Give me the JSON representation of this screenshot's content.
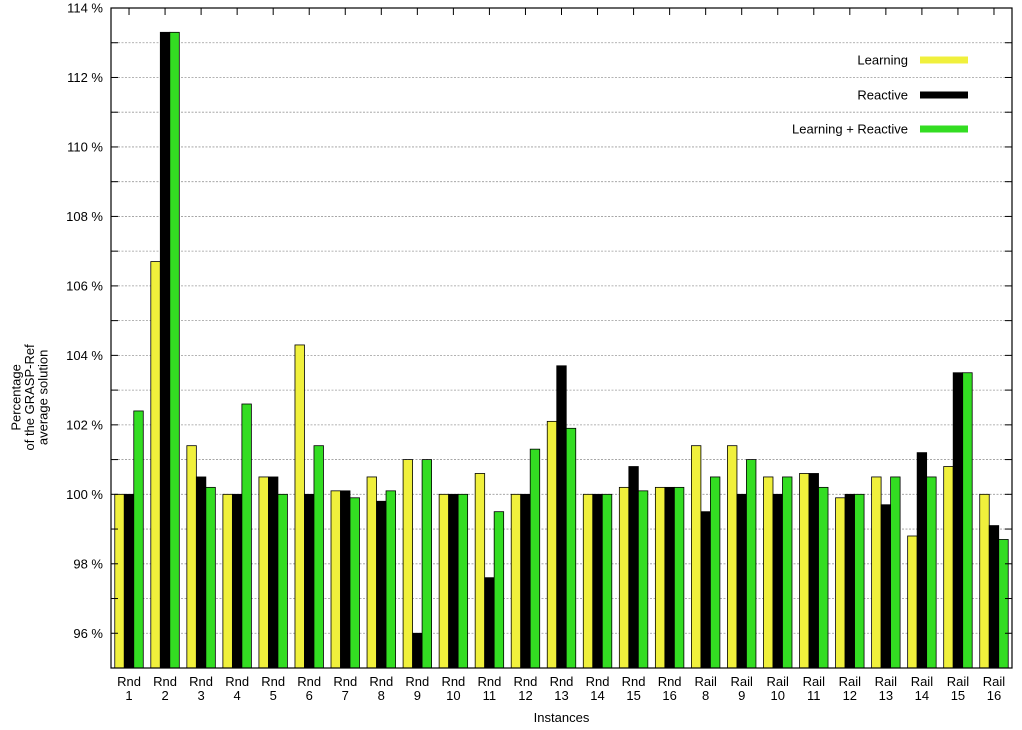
{
  "chart_data": {
    "type": "bar",
    "title": "",
    "xlabel": "Instances",
    "ylabel": [
      "Percentage",
      "of the GRASP-Ref",
      "average solution"
    ],
    "ylim": [
      95,
      114
    ],
    "yticks": [
      96,
      98,
      100,
      102,
      104,
      106,
      108,
      110,
      112,
      114
    ],
    "ytick_suffix": " %",
    "grid": true,
    "legend_position": "top-right",
    "categories": [
      [
        "Rnd",
        "1"
      ],
      [
        "Rnd",
        "2"
      ],
      [
        "Rnd",
        "3"
      ],
      [
        "Rnd",
        "4"
      ],
      [
        "Rnd",
        "5"
      ],
      [
        "Rnd",
        "6"
      ],
      [
        "Rnd",
        "7"
      ],
      [
        "Rnd",
        "8"
      ],
      [
        "Rnd",
        "9"
      ],
      [
        "Rnd",
        "10"
      ],
      [
        "Rnd",
        "11"
      ],
      [
        "Rnd",
        "12"
      ],
      [
        "Rnd",
        "13"
      ],
      [
        "Rnd",
        "14"
      ],
      [
        "Rnd",
        "15"
      ],
      [
        "Rnd",
        "16"
      ],
      [
        "Rail",
        "8"
      ],
      [
        "Rail",
        "9"
      ],
      [
        "Rail",
        "10"
      ],
      [
        "Rail",
        "11"
      ],
      [
        "Rail",
        "12"
      ],
      [
        "Rail",
        "13"
      ],
      [
        "Rail",
        "14"
      ],
      [
        "Rail",
        "15"
      ],
      [
        "Rail",
        "16"
      ]
    ],
    "series": [
      {
        "name": "Learning",
        "color": "#f0f03c",
        "values": [
          100.0,
          106.7,
          101.4,
          100.0,
          100.5,
          104.3,
          100.1,
          100.5,
          101.0,
          100.0,
          100.6,
          100.0,
          102.1,
          100.0,
          100.2,
          100.2,
          101.4,
          101.4,
          100.5,
          100.6,
          99.9,
          100.5,
          98.8,
          100.8,
          100.0
        ]
      },
      {
        "name": "Reactive",
        "color": "#000000",
        "values": [
          100.0,
          113.3,
          100.5,
          100.0,
          100.5,
          100.0,
          100.1,
          99.8,
          96.0,
          100.0,
          97.6,
          100.0,
          103.7,
          100.0,
          100.8,
          100.2,
          99.5,
          100.0,
          100.0,
          100.6,
          100.0,
          99.7,
          101.2,
          103.5,
          99.1
        ]
      },
      {
        "name": "Learning + Reactive",
        "color": "#33dd22",
        "values": [
          102.4,
          113.3,
          100.2,
          102.6,
          100.0,
          101.4,
          99.9,
          100.1,
          101.0,
          100.0,
          99.5,
          101.3,
          101.9,
          100.0,
          100.1,
          100.2,
          100.5,
          101.0,
          100.5,
          100.2,
          100.0,
          100.5,
          100.5,
          103.5,
          98.7
        ]
      }
    ]
  }
}
